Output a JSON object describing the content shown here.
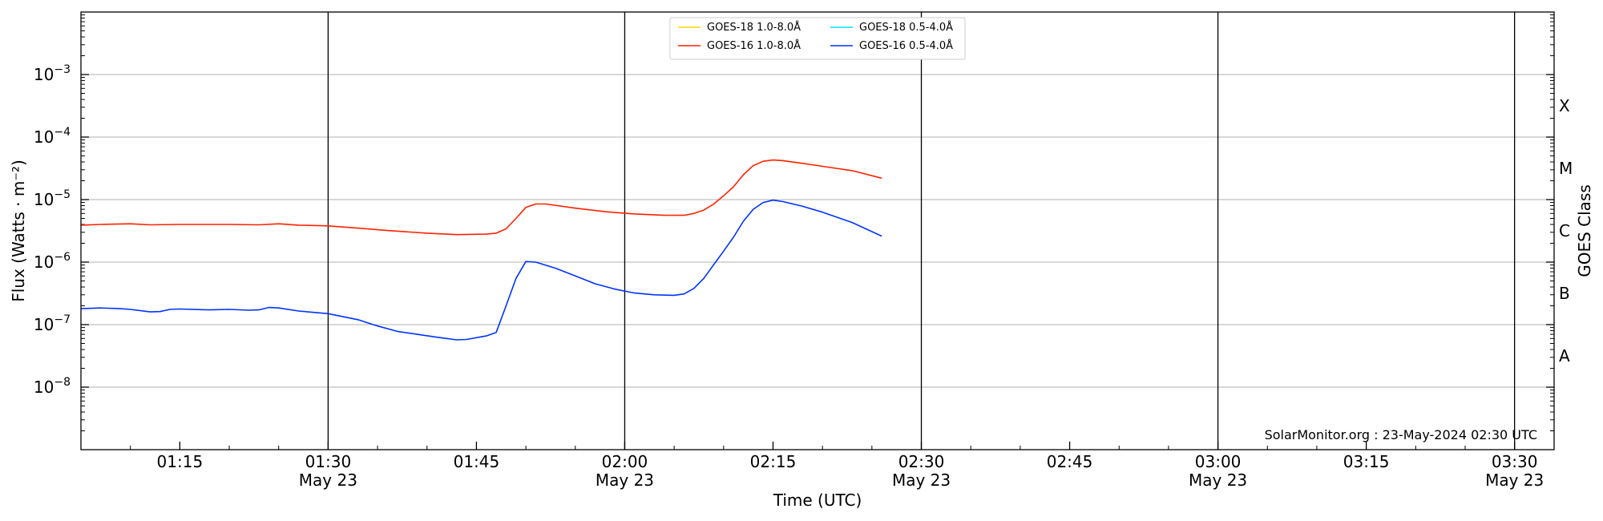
{
  "chart_data": {
    "type": "line",
    "xlabel": "Time (UTC)",
    "ylabel": "Flux (Watts · m⁻²)",
    "y2label": "GOES Class",
    "x_domain": [
      "01:05",
      "03:34"
    ],
    "y_scale": "log",
    "ylim": [
      1e-09,
      0.01
    ],
    "y_ticks": [
      {
        "value": 1e-08,
        "base": "10",
        "exp": "−8"
      },
      {
        "value": 1e-07,
        "base": "10",
        "exp": "−7"
      },
      {
        "value": 1e-06,
        "base": "10",
        "exp": "−6"
      },
      {
        "value": 1e-05,
        "base": "10",
        "exp": "−5"
      },
      {
        "value": 0.0001,
        "base": "10",
        "exp": "−4"
      },
      {
        "value": 0.001,
        "base": "10",
        "exp": "−3"
      }
    ],
    "goes_classes": [
      {
        "label": "A",
        "value": 3.16e-08
      },
      {
        "label": "B",
        "value": 3.16e-07
      },
      {
        "label": "C",
        "value": 3.16e-06
      },
      {
        "label": "M",
        "value": 3.16e-05
      },
      {
        "label": "X",
        "value": 0.000316
      }
    ],
    "x_ticks": [
      {
        "time": "01:15",
        "line1": "01:15",
        "line2": ""
      },
      {
        "time": "01:30",
        "line1": "01:30",
        "line2": "May 23"
      },
      {
        "time": "01:45",
        "line1": "01:45",
        "line2": ""
      },
      {
        "time": "02:00",
        "line1": "02:00",
        "line2": "May 23"
      },
      {
        "time": "02:15",
        "line1": "02:15",
        "line2": ""
      },
      {
        "time": "02:30",
        "line1": "02:30",
        "line2": "May 23"
      },
      {
        "time": "02:45",
        "line1": "02:45",
        "line2": ""
      },
      {
        "time": "03:00",
        "line1": "03:00",
        "line2": "May 23"
      },
      {
        "time": "03:15",
        "line1": "03:15",
        "line2": ""
      },
      {
        "time": "03:30",
        "line1": "03:30",
        "line2": "May 23"
      }
    ],
    "vlines": [
      "01:30",
      "02:00",
      "02:30",
      "03:00",
      "03:30"
    ],
    "grid": "horizontal",
    "legend_position": "top-center",
    "legend": [
      {
        "label": "GOES-18 1.0-8.0Å",
        "color": "#ffd700"
      },
      {
        "label": "GOES-18 0.5-4.0Å",
        "color": "#00e5ee"
      },
      {
        "label": "GOES-16 1.0-8.0Å",
        "color": "#ff2200"
      },
      {
        "label": "GOES-16 0.5-4.0Å",
        "color": "#0033ff"
      }
    ],
    "series": [
      {
        "name": "GOES-16 1.0-8.0Å",
        "color": "#ff2200",
        "points": [
          [
            "01:05",
            3.9e-06
          ],
          [
            "01:07",
            4e-06
          ],
          [
            "01:10",
            4.1e-06
          ],
          [
            "01:12",
            3.95e-06
          ],
          [
            "01:15",
            4e-06
          ],
          [
            "01:20",
            4e-06
          ],
          [
            "01:23",
            3.95e-06
          ],
          [
            "01:25",
            4.1e-06
          ],
          [
            "01:27",
            3.9e-06
          ],
          [
            "01:30",
            3.8e-06
          ],
          [
            "01:33",
            3.5e-06
          ],
          [
            "01:36",
            3.2e-06
          ],
          [
            "01:40",
            2.9e-06
          ],
          [
            "01:43",
            2.75e-06
          ],
          [
            "01:46",
            2.8e-06
          ],
          [
            "01:47",
            2.9e-06
          ],
          [
            "01:48",
            3.4e-06
          ],
          [
            "01:49",
            5e-06
          ],
          [
            "01:50",
            7.5e-06
          ],
          [
            "01:51",
            8.5e-06
          ],
          [
            "01:52",
            8.5e-06
          ],
          [
            "01:55",
            7.3e-06
          ],
          [
            "01:58",
            6.4e-06
          ],
          [
            "02:01",
            5.9e-06
          ],
          [
            "02:04",
            5.6e-06
          ],
          [
            "02:06",
            5.6e-06
          ],
          [
            "02:07",
            6e-06
          ],
          [
            "02:08",
            6.8e-06
          ],
          [
            "02:09",
            8.5e-06
          ],
          [
            "02:10",
            1.15e-05
          ],
          [
            "02:11",
            1.6e-05
          ],
          [
            "02:12",
            2.5e-05
          ],
          [
            "02:13",
            3.5e-05
          ],
          [
            "02:14",
            4.1e-05
          ],
          [
            "02:15",
            4.3e-05
          ],
          [
            "02:16",
            4.2e-05
          ],
          [
            "02:18",
            3.8e-05
          ],
          [
            "02:20",
            3.4e-05
          ],
          [
            "02:23",
            2.9e-05
          ],
          [
            "02:26",
            2.2e-05
          ]
        ]
      },
      {
        "name": "GOES-16 0.5-4.0Å",
        "color": "#0033ff",
        "points": [
          [
            "01:05",
            1.8e-07
          ],
          [
            "01:07",
            1.85e-07
          ],
          [
            "01:09",
            1.8e-07
          ],
          [
            "01:10",
            1.75e-07
          ],
          [
            "01:12",
            1.6e-07
          ],
          [
            "01:13",
            1.62e-07
          ],
          [
            "01:14",
            1.75e-07
          ],
          [
            "01:15",
            1.78e-07
          ],
          [
            "01:18",
            1.72e-07
          ],
          [
            "01:20",
            1.75e-07
          ],
          [
            "01:22",
            1.7e-07
          ],
          [
            "01:23",
            1.72e-07
          ],
          [
            "01:24",
            1.88e-07
          ],
          [
            "01:25",
            1.85e-07
          ],
          [
            "01:27",
            1.65e-07
          ],
          [
            "01:30",
            1.5e-07
          ],
          [
            "01:33",
            1.2e-07
          ],
          [
            "01:35",
            9.5e-08
          ],
          [
            "01:37",
            7.8e-08
          ],
          [
            "01:39",
            7e-08
          ],
          [
            "01:41",
            6.3e-08
          ],
          [
            "01:42",
            6e-08
          ],
          [
            "01:43",
            5.7e-08
          ],
          [
            "01:44",
            5.8e-08
          ],
          [
            "01:46",
            6.6e-08
          ],
          [
            "01:47",
            7.5e-08
          ],
          [
            "01:48",
            2e-07
          ],
          [
            "01:49",
            5.5e-07
          ],
          [
            "01:50",
            1.02e-06
          ],
          [
            "01:51",
            1e-06
          ],
          [
            "01:53",
            8e-07
          ],
          [
            "01:55",
            6e-07
          ],
          [
            "01:57",
            4.5e-07
          ],
          [
            "01:59",
            3.7e-07
          ],
          [
            "02:01",
            3.2e-07
          ],
          [
            "02:03",
            3e-07
          ],
          [
            "02:05",
            2.95e-07
          ],
          [
            "02:06",
            3.1e-07
          ],
          [
            "02:07",
            3.8e-07
          ],
          [
            "02:08",
            5.5e-07
          ],
          [
            "02:10",
            1.5e-06
          ],
          [
            "02:11",
            2.5e-06
          ],
          [
            "02:12",
            4.5e-06
          ],
          [
            "02:13",
            7e-06
          ],
          [
            "02:14",
            9e-06
          ],
          [
            "02:15",
            9.8e-06
          ],
          [
            "02:16",
            9.3e-06
          ],
          [
            "02:18",
            7.8e-06
          ],
          [
            "02:20",
            6.3e-06
          ],
          [
            "02:23",
            4.3e-06
          ],
          [
            "02:26",
            2.6e-06
          ]
        ]
      }
    ],
    "annotation": "SolarMonitor.org : 23-May-2024 02:30 UTC"
  }
}
